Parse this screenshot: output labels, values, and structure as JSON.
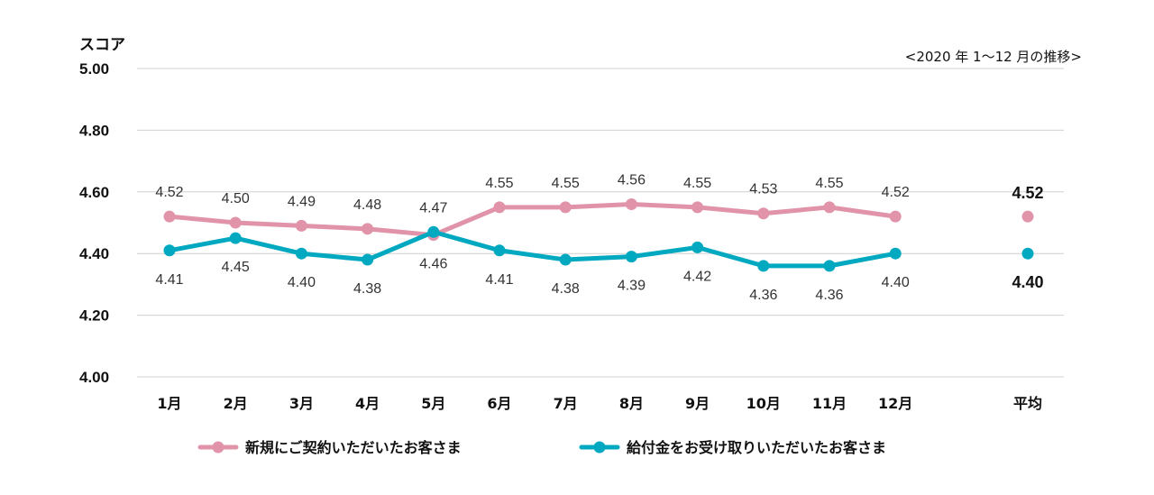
{
  "chart_data": {
    "type": "line",
    "ylabel": "スコア",
    "period_note": "<2020 年 1～12 月の推移>",
    "ylim": [
      4.0,
      5.0
    ],
    "yticks": [
      "5.00",
      "4.80",
      "4.60",
      "4.40",
      "4.20",
      "4.00"
    ],
    "ytick_values": [
      5.0,
      4.8,
      4.6,
      4.4,
      4.2,
      4.0
    ],
    "categories": [
      "1月",
      "2月",
      "3月",
      "4月",
      "5月",
      "6月",
      "7月",
      "8月",
      "9月",
      "10月",
      "11月",
      "12月"
    ],
    "average_category": "平均",
    "grid": true,
    "legend_position": "bottom",
    "series": [
      {
        "name": "新規にご契約いただいたお客さま",
        "color": "#e093a9",
        "values": [
          4.52,
          4.5,
          4.49,
          4.48,
          4.46,
          4.55,
          4.55,
          4.56,
          4.55,
          4.53,
          4.55,
          4.52
        ],
        "labels": [
          "4.52",
          "4.50",
          "4.49",
          "4.48",
          "4.46",
          "4.55",
          "4.55",
          "4.56",
          "4.55",
          "4.53",
          "4.55",
          "4.52"
        ],
        "average": 4.52,
        "average_label": "4.52"
      },
      {
        "name": "給付金をお受け取りいただいたお客さま",
        "color": "#00a8c0",
        "values": [
          4.41,
          4.45,
          4.4,
          4.38,
          4.47,
          4.41,
          4.38,
          4.39,
          4.42,
          4.36,
          4.36,
          4.4
        ],
        "labels": [
          "4.41",
          "4.45",
          "4.40",
          "4.38",
          "4.47",
          "4.41",
          "4.38",
          "4.39",
          "4.42",
          "4.36",
          "4.36",
          "4.40"
        ],
        "average": 4.4,
        "average_label": "4.40"
      }
    ]
  }
}
